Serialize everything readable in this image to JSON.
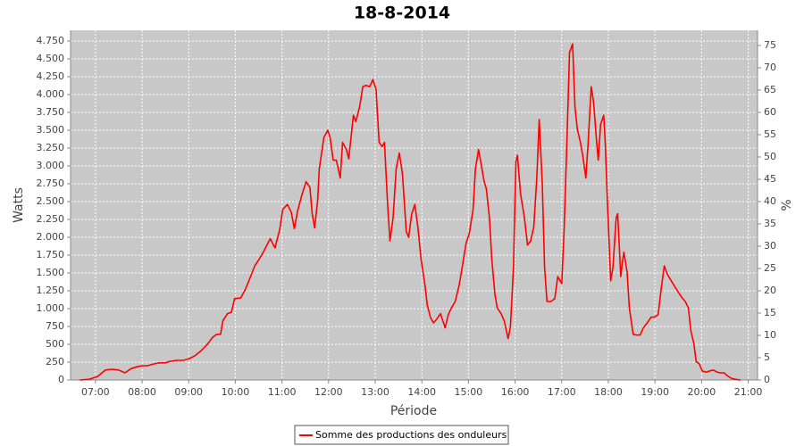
{
  "chart_data": {
    "type": "line",
    "title": "18-8-2014",
    "xlabel": "Période",
    "ylabel": "Watts",
    "y2label": "%",
    "x": [
      "06:40",
      "06:52",
      "07:03",
      "07:13",
      "07:21",
      "07:30",
      "07:38",
      "07:46",
      "07:55",
      "08:01",
      "08:07",
      "08:15",
      "08:22",
      "08:30",
      "08:35",
      "08:45",
      "08:53",
      "09:01",
      "09:08",
      "09:16",
      "09:24",
      "09:31",
      "09:36",
      "09:41",
      "09:44",
      "09:50",
      "09:55",
      "09:59",
      "10:07",
      "10:13",
      "10:19",
      "10:25",
      "10:30",
      "10:36",
      "10:42",
      "10:45",
      "10:51",
      "10:57",
      "11:01",
      "11:07",
      "11:12",
      "11:16",
      "11:20",
      "11:25",
      "11:31",
      "11:36",
      "11:39",
      "11:42",
      "11:46",
      "11:48",
      "11:54",
      "11:59",
      "12:02",
      "12:06",
      "12:10",
      "12:15",
      "12:18",
      "12:23",
      "12:26",
      "12:32",
      "12:35",
      "12:40",
      "12:44",
      "12:48",
      "12:53",
      "12:57",
      "13:01",
      "13:05",
      "13:09",
      "13:12",
      "13:16",
      "13:19",
      "13:23",
      "13:27",
      "13:31",
      "13:35",
      "13:40",
      "13:43",
      "13:47",
      "13:51",
      "13:55",
      "13:59",
      "14:04",
      "14:07",
      "14:11",
      "14:15",
      "14:19",
      "14:24",
      "14:27",
      "14:30",
      "14:34",
      "14:38",
      "14:43",
      "14:48",
      "14:52",
      "14:57",
      "15:01",
      "15:06",
      "15:09",
      "15:13",
      "15:16",
      "15:20",
      "15:23",
      "15:27",
      "15:30",
      "15:34",
      "15:37",
      "15:42",
      "15:46",
      "15:51",
      "15:54",
      "15:58",
      "16:01",
      "16:03",
      "16:07",
      "16:12",
      "16:16",
      "16:20",
      "16:24",
      "16:28",
      "16:31",
      "16:35",
      "16:38",
      "16:41",
      "16:46",
      "16:51",
      "16:55",
      "17:00",
      "17:03",
      "17:07",
      "17:10",
      "17:14",
      "17:17",
      "17:20",
      "17:24",
      "17:27",
      "17:31",
      "17:34",
      "17:38",
      "17:41",
      "17:45",
      "17:47",
      "17:50",
      "17:54",
      "17:56",
      "17:59",
      "18:03",
      "18:06",
      "18:10",
      "18:12",
      "18:16",
      "18:18",
      "18:20",
      "18:24",
      "18:27",
      "18:32",
      "18:36",
      "18:41",
      "18:45",
      "18:50",
      "18:55",
      "18:59",
      "19:04",
      "19:08",
      "19:12",
      "19:16",
      "19:21",
      "19:26",
      "19:30",
      "19:35",
      "19:39",
      "19:43",
      "19:46",
      "19:50",
      "19:53",
      "19:57",
      "20:01",
      "20:06",
      "20:10",
      "20:15",
      "20:20",
      "20:24",
      "20:29",
      "20:33",
      "20:38",
      "20:43",
      "20:50"
    ],
    "series": [
      {
        "name": "Somme des productions des onduleurs",
        "color": "#ff0000",
        "values": [
          0,
          10,
          50,
          140,
          150,
          140,
          100,
          160,
          190,
          200,
          200,
          225,
          240,
          240,
          260,
          275,
          275,
          300,
          340,
          410,
          500,
          600,
          640,
          640,
          830,
          930,
          950,
          1140,
          1150,
          1270,
          1430,
          1600,
          1680,
          1790,
          1920,
          1980,
          1850,
          2100,
          2390,
          2460,
          2350,
          2120,
          2360,
          2570,
          2780,
          2700,
          2330,
          2130,
          2520,
          2960,
          3400,
          3500,
          3400,
          3080,
          3080,
          2830,
          3330,
          3230,
          3100,
          3710,
          3620,
          3830,
          4110,
          4130,
          4110,
          4210,
          4080,
          3330,
          3270,
          3330,
          2460,
          1950,
          2270,
          2960,
          3180,
          2890,
          2080,
          2000,
          2330,
          2460,
          2140,
          1700,
          1330,
          1050,
          880,
          800,
          850,
          930,
          830,
          730,
          915,
          1010,
          1100,
          1330,
          1580,
          1920,
          2050,
          2390,
          2960,
          3230,
          3050,
          2790,
          2680,
          2270,
          1700,
          1200,
          1010,
          930,
          830,
          580,
          750,
          1580,
          3060,
          3150,
          2610,
          2280,
          1890,
          1950,
          2140,
          2830,
          3650,
          2770,
          1580,
          1100,
          1100,
          1140,
          1450,
          1350,
          2080,
          3460,
          4590,
          4710,
          3830,
          3520,
          3330,
          3150,
          2830,
          3330,
          4110,
          3900,
          3330,
          3080,
          3580,
          3710,
          3330,
          2460,
          1390,
          1580,
          2270,
          2330,
          1450,
          1640,
          1790,
          1520,
          1010,
          640,
          630,
          630,
          730,
          800,
          880,
          880,
          915,
          1270,
          1600,
          1480,
          1390,
          1300,
          1230,
          1150,
          1100,
          1010,
          700,
          510,
          260,
          225,
          125,
          110,
          125,
          140,
          110,
          100,
          100,
          60,
          25,
          10,
          0
        ]
      }
    ],
    "xlim": [
      "06:28",
      "21:12"
    ],
    "xticks": [
      "07:00",
      "08:00",
      "09:00",
      "10:00",
      "11:00",
      "12:00",
      "13:00",
      "14:00",
      "15:00",
      "16:00",
      "17:00",
      "18:00",
      "19:00",
      "20:00",
      "21:00"
    ],
    "ylim": [
      0,
      4900
    ],
    "yticks": [
      0,
      250,
      500,
      750,
      {
        "value": 1000,
        "label": "1.000"
      },
      {
        "value": 1250,
        "label": "1.250"
      },
      {
        "value": 1500,
        "label": "1.500"
      },
      {
        "value": 1750,
        "label": "1.750"
      },
      {
        "value": 2000,
        "label": "2.000"
      },
      {
        "value": 2250,
        "label": "2.250"
      },
      {
        "value": 2500,
        "label": "2.500"
      },
      {
        "value": 2750,
        "label": "2.750"
      },
      {
        "value": 3000,
        "label": "3.000"
      },
      {
        "value": 3250,
        "label": "3.250"
      },
      {
        "value": 3500,
        "label": "3.500"
      },
      {
        "value": 3750,
        "label": "3.750"
      },
      {
        "value": 4000,
        "label": "4.000"
      },
      {
        "value": 4250,
        "label": "4.250"
      },
      {
        "value": 4500,
        "label": "4.500"
      },
      {
        "value": 4750,
        "label": "4.750"
      }
    ],
    "y2lim": [
      0,
      78.4
    ],
    "y2ticks": [
      0,
      5,
      10,
      15,
      20,
      25,
      30,
      35,
      40,
      45,
      50,
      55,
      60,
      65,
      70,
      75
    ],
    "grid": true,
    "legend": "bottom"
  }
}
